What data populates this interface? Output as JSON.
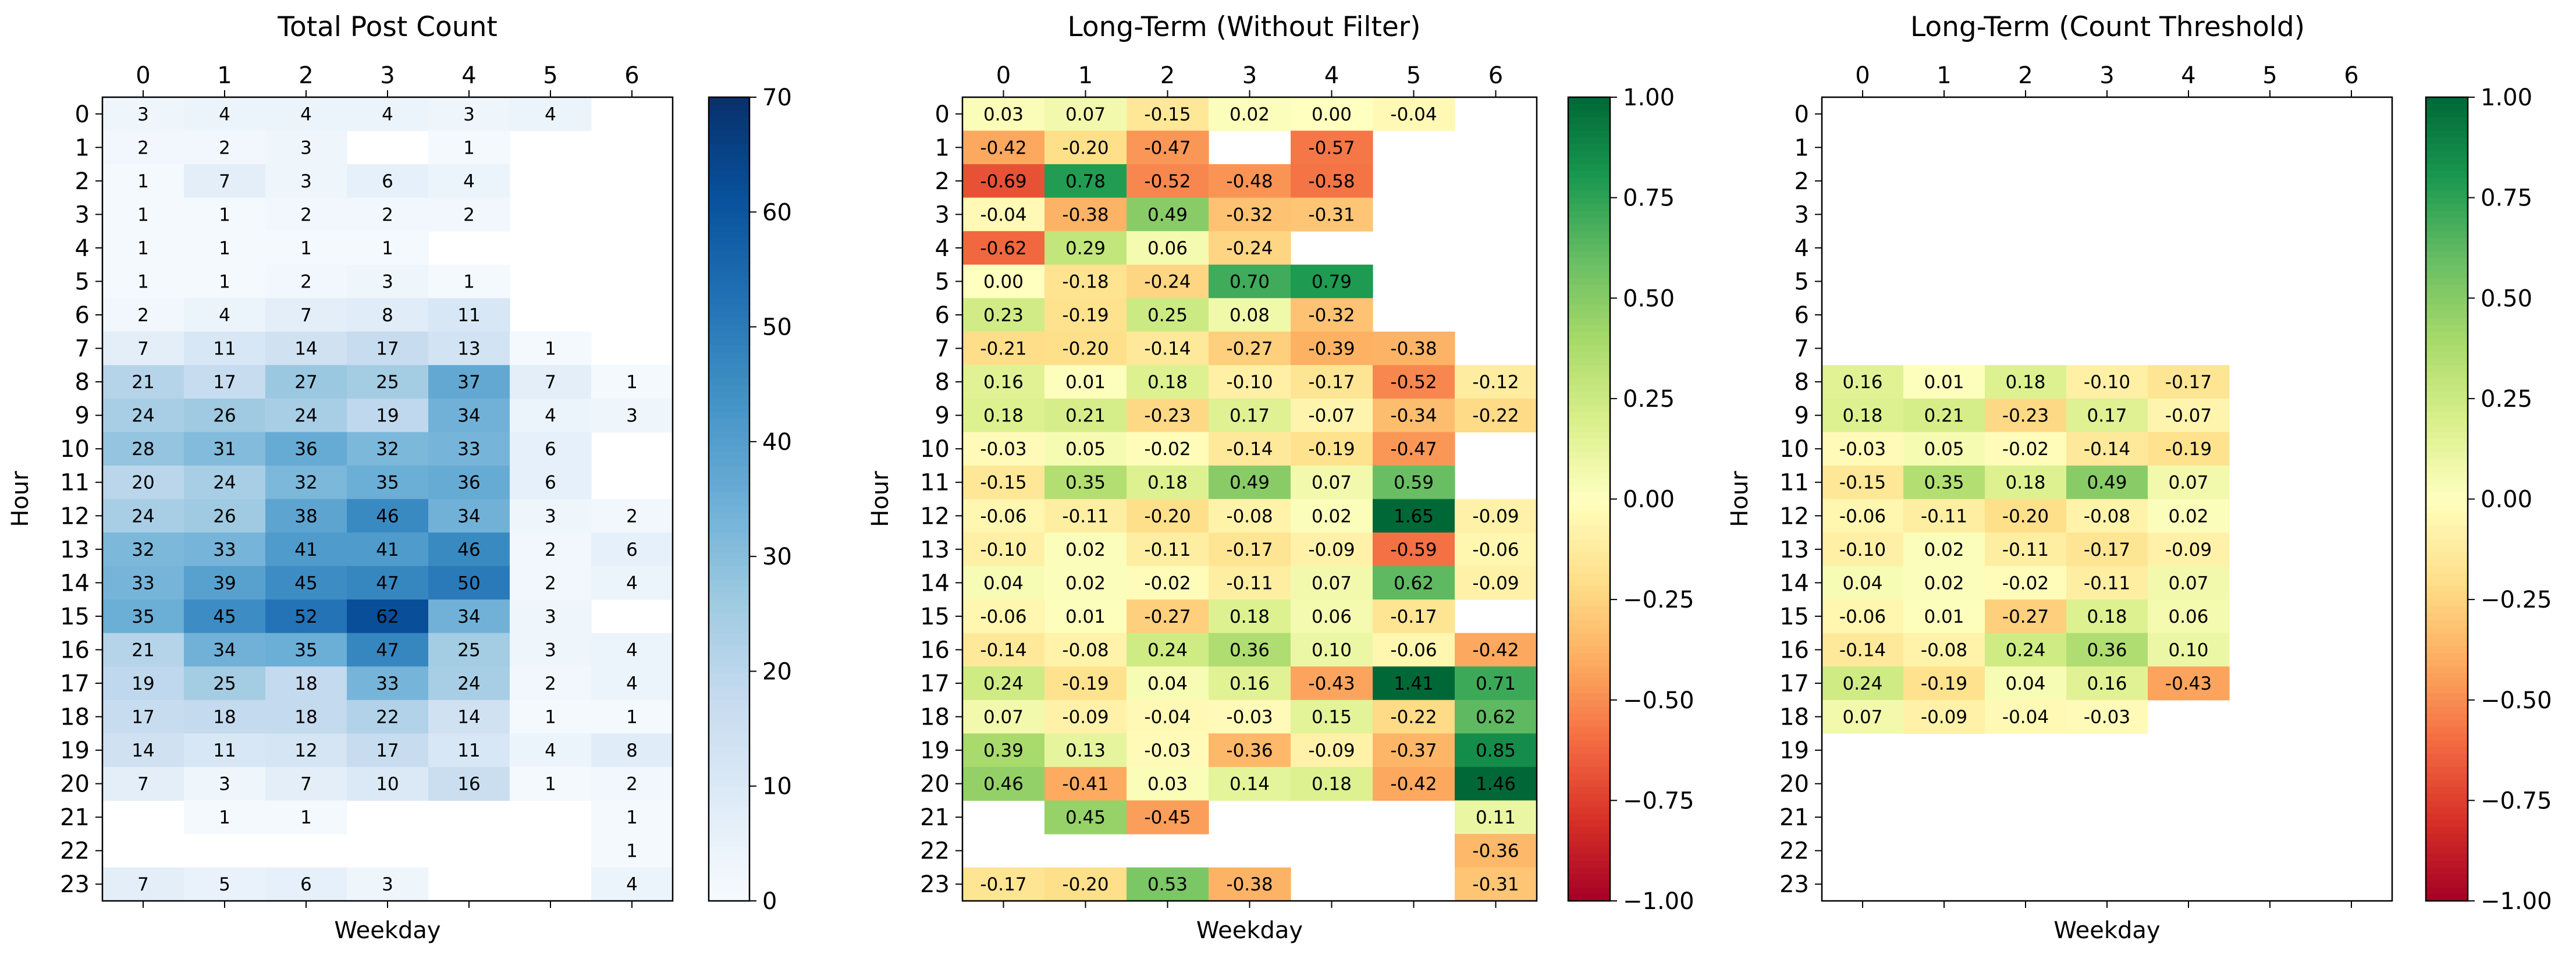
{
  "chart_data": [
    {
      "type": "heatmap",
      "title": "Total Post Count",
      "xlabel": "Weekday",
      "ylabel": "Hour",
      "x": [
        0,
        1,
        2,
        3,
        4,
        5,
        6
      ],
      "y": [
        0,
        1,
        2,
        3,
        4,
        5,
        6,
        7,
        8,
        9,
        10,
        11,
        12,
        13,
        14,
        15,
        16,
        17,
        18,
        19,
        20,
        21,
        22,
        23
      ],
      "colormap": "Blues",
      "colorbar": {
        "min": 0,
        "max": 70,
        "ticks": [
          0,
          10,
          20,
          30,
          40,
          50,
          60,
          70
        ],
        "tick_labels": [
          "0",
          "10",
          "20",
          "30",
          "40",
          "50",
          "60",
          "70"
        ]
      },
      "values": [
        [
          3,
          4,
          4,
          4,
          3,
          4,
          null
        ],
        [
          2,
          2,
          3,
          null,
          1,
          null,
          null
        ],
        [
          1,
          7,
          3,
          6,
          4,
          null,
          null
        ],
        [
          1,
          1,
          2,
          2,
          2,
          null,
          null
        ],
        [
          1,
          1,
          1,
          1,
          null,
          null,
          null
        ],
        [
          1,
          1,
          2,
          3,
          1,
          null,
          null
        ],
        [
          2,
          4,
          7,
          8,
          11,
          null,
          null
        ],
        [
          7,
          11,
          14,
          17,
          13,
          1,
          null
        ],
        [
          21,
          17,
          27,
          25,
          37,
          7,
          1
        ],
        [
          24,
          26,
          24,
          19,
          34,
          4,
          3
        ],
        [
          28,
          31,
          36,
          32,
          33,
          6,
          null
        ],
        [
          20,
          24,
          32,
          35,
          36,
          6,
          null
        ],
        [
          24,
          26,
          38,
          46,
          34,
          3,
          2
        ],
        [
          32,
          33,
          41,
          41,
          46,
          2,
          6
        ],
        [
          33,
          39,
          45,
          47,
          50,
          2,
          4
        ],
        [
          35,
          45,
          52,
          62,
          34,
          3,
          null
        ],
        [
          21,
          34,
          35,
          47,
          25,
          3,
          4
        ],
        [
          19,
          25,
          18,
          33,
          24,
          2,
          4
        ],
        [
          17,
          18,
          18,
          22,
          14,
          1,
          1
        ],
        [
          14,
          11,
          12,
          17,
          11,
          4,
          8
        ],
        [
          7,
          3,
          7,
          10,
          16,
          1,
          2
        ],
        [
          null,
          1,
          1,
          null,
          null,
          null,
          1
        ],
        [
          null,
          null,
          null,
          null,
          null,
          null,
          1
        ],
        [
          7,
          5,
          6,
          3,
          null,
          null,
          4
        ]
      ]
    },
    {
      "type": "heatmap",
      "title": "Long-Term (Without Filter)",
      "xlabel": "Weekday",
      "ylabel": "Hour",
      "x": [
        0,
        1,
        2,
        3,
        4,
        5,
        6
      ],
      "y": [
        0,
        1,
        2,
        3,
        4,
        5,
        6,
        7,
        8,
        9,
        10,
        11,
        12,
        13,
        14,
        15,
        16,
        17,
        18,
        19,
        20,
        21,
        22,
        23
      ],
      "colormap": "RdYlGn",
      "colorbar": {
        "min": -1.0,
        "max": 1.0,
        "ticks": [
          -1.0,
          -0.75,
          -0.5,
          -0.25,
          0.0,
          0.25,
          0.5,
          0.75,
          1.0
        ],
        "tick_labels": [
          "−1.00",
          "−0.75",
          "−0.50",
          "−0.25",
          "0.00",
          "0.25",
          "0.50",
          "0.75",
          "1.00"
        ]
      },
      "values": [
        [
          0.03,
          0.07,
          -0.15,
          0.02,
          0.0,
          -0.04,
          null
        ],
        [
          -0.42,
          -0.2,
          -0.47,
          null,
          -0.57,
          null,
          null
        ],
        [
          -0.69,
          0.78,
          -0.52,
          -0.48,
          -0.58,
          null,
          null
        ],
        [
          -0.04,
          -0.38,
          0.49,
          -0.32,
          -0.31,
          null,
          null
        ],
        [
          -0.62,
          0.29,
          0.06,
          -0.24,
          null,
          null,
          null
        ],
        [
          -0.0,
          -0.18,
          -0.24,
          0.7,
          0.79,
          null,
          null
        ],
        [
          0.23,
          -0.19,
          0.25,
          0.08,
          -0.32,
          null,
          null
        ],
        [
          -0.21,
          -0.2,
          -0.14,
          -0.27,
          -0.39,
          -0.38,
          null
        ],
        [
          0.16,
          0.01,
          0.18,
          -0.1,
          -0.17,
          -0.52,
          -0.12
        ],
        [
          0.18,
          0.21,
          -0.23,
          0.17,
          -0.07,
          -0.34,
          -0.22
        ],
        [
          -0.03,
          0.05,
          -0.02,
          -0.14,
          -0.19,
          -0.47,
          null
        ],
        [
          -0.15,
          0.35,
          0.18,
          0.49,
          0.07,
          0.59,
          null
        ],
        [
          -0.06,
          -0.11,
          -0.2,
          -0.08,
          0.02,
          1.65,
          -0.09
        ],
        [
          -0.1,
          0.02,
          -0.11,
          -0.17,
          -0.09,
          -0.59,
          -0.06
        ],
        [
          0.04,
          0.02,
          -0.02,
          -0.11,
          0.07,
          0.62,
          -0.09
        ],
        [
          -0.06,
          0.01,
          -0.27,
          0.18,
          0.06,
          -0.17,
          null
        ],
        [
          -0.14,
          -0.08,
          0.24,
          0.36,
          0.1,
          -0.06,
          -0.42
        ],
        [
          0.24,
          -0.19,
          0.04,
          0.16,
          -0.43,
          1.41,
          0.71
        ],
        [
          0.07,
          -0.09,
          -0.04,
          -0.03,
          0.15,
          -0.22,
          0.62
        ],
        [
          0.39,
          0.13,
          -0.03,
          -0.36,
          -0.09,
          -0.37,
          0.85
        ],
        [
          0.46,
          -0.41,
          0.03,
          0.14,
          0.18,
          -0.42,
          1.46
        ],
        [
          null,
          0.45,
          -0.45,
          null,
          null,
          null,
          0.11
        ],
        [
          null,
          null,
          null,
          null,
          null,
          null,
          -0.36
        ],
        [
          -0.17,
          -0.2,
          0.53,
          -0.38,
          null,
          null,
          -0.31
        ]
      ]
    },
    {
      "type": "heatmap",
      "title": "Long-Term (Count Threshold)",
      "xlabel": "Weekday",
      "ylabel": "Hour",
      "x": [
        0,
        1,
        2,
        3,
        4,
        5,
        6
      ],
      "y": [
        0,
        1,
        2,
        3,
        4,
        5,
        6,
        7,
        8,
        9,
        10,
        11,
        12,
        13,
        14,
        15,
        16,
        17,
        18,
        19,
        20,
        21,
        22,
        23
      ],
      "colormap": "RdYlGn",
      "colorbar": {
        "min": -1.0,
        "max": 1.0,
        "ticks": [
          -1.0,
          -0.75,
          -0.5,
          -0.25,
          0.0,
          0.25,
          0.5,
          0.75,
          1.0
        ],
        "tick_labels": [
          "−1.00",
          "−0.75",
          "−0.50",
          "−0.25",
          "0.00",
          "0.25",
          "0.50",
          "0.75",
          "1.00"
        ]
      },
      "values": [
        [
          null,
          null,
          null,
          null,
          null,
          null,
          null
        ],
        [
          null,
          null,
          null,
          null,
          null,
          null,
          null
        ],
        [
          null,
          null,
          null,
          null,
          null,
          null,
          null
        ],
        [
          null,
          null,
          null,
          null,
          null,
          null,
          null
        ],
        [
          null,
          null,
          null,
          null,
          null,
          null,
          null
        ],
        [
          null,
          null,
          null,
          null,
          null,
          null,
          null
        ],
        [
          null,
          null,
          null,
          null,
          null,
          null,
          null
        ],
        [
          null,
          null,
          null,
          null,
          null,
          null,
          null
        ],
        [
          0.16,
          0.01,
          0.18,
          -0.1,
          -0.17,
          null,
          null
        ],
        [
          0.18,
          0.21,
          -0.23,
          0.17,
          -0.07,
          null,
          null
        ],
        [
          -0.03,
          0.05,
          -0.02,
          -0.14,
          -0.19,
          null,
          null
        ],
        [
          -0.15,
          0.35,
          0.18,
          0.49,
          0.07,
          null,
          null
        ],
        [
          -0.06,
          -0.11,
          -0.2,
          -0.08,
          0.02,
          null,
          null
        ],
        [
          -0.1,
          0.02,
          -0.11,
          -0.17,
          -0.09,
          null,
          null
        ],
        [
          0.04,
          0.02,
          -0.02,
          -0.11,
          0.07,
          null,
          null
        ],
        [
          -0.06,
          0.01,
          -0.27,
          0.18,
          0.06,
          null,
          null
        ],
        [
          -0.14,
          -0.08,
          0.24,
          0.36,
          0.1,
          null,
          null
        ],
        [
          0.24,
          -0.19,
          0.04,
          0.16,
          -0.43,
          null,
          null
        ],
        [
          0.07,
          -0.09,
          -0.04,
          -0.03,
          null,
          null,
          null
        ],
        [
          null,
          null,
          null,
          null,
          null,
          null,
          null
        ],
        [
          null,
          null,
          null,
          null,
          null,
          null,
          null
        ],
        [
          null,
          null,
          null,
          null,
          null,
          null,
          null
        ],
        [
          null,
          null,
          null,
          null,
          null,
          null,
          null
        ],
        [
          null,
          null,
          null,
          null,
          null,
          null,
          null
        ]
      ]
    }
  ]
}
